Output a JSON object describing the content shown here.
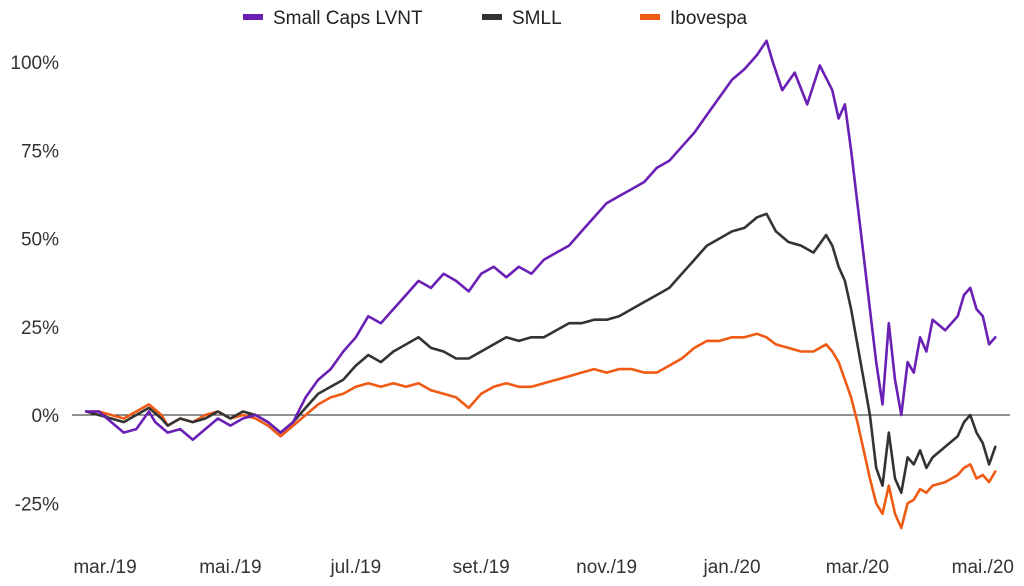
{
  "chart_data": {
    "type": "line",
    "title": "",
    "xlabel": "",
    "ylabel": "",
    "ylim": [
      -25,
      108
    ],
    "grid": false,
    "zero_line": true,
    "legend_position": "top-center",
    "y_ticks": [
      {
        "value": 100,
        "label": "100%"
      },
      {
        "value": 75,
        "label": "75%"
      },
      {
        "value": 50,
        "label": "50%"
      },
      {
        "value": 25,
        "label": "25%"
      },
      {
        "value": 0,
        "label": "0%"
      },
      {
        "value": -25,
        "label": "-25%"
      }
    ],
    "x_ticks": [
      {
        "value": 0,
        "label": "mar./19"
      },
      {
        "value": 2,
        "label": "mai./19"
      },
      {
        "value": 4,
        "label": "jul./19"
      },
      {
        "value": 6,
        "label": "set./19"
      },
      {
        "value": 8,
        "label": "nov./19"
      },
      {
        "value": 10,
        "label": "jan./20"
      },
      {
        "value": 12,
        "label": "mar./20"
      },
      {
        "value": 14,
        "label": "mai./20"
      }
    ],
    "x_unit": "months since mar./19",
    "xlim": [
      -0.3,
      14.25
    ],
    "series": [
      {
        "name": "Small Caps LVNT",
        "color": "#6a1fb5",
        "points": [
          [
            -0.3,
            1
          ],
          [
            -0.1,
            1
          ],
          [
            0.1,
            -2
          ],
          [
            0.3,
            -5
          ],
          [
            0.5,
            -4
          ],
          [
            0.7,
            1
          ],
          [
            0.8,
            -2
          ],
          [
            1.0,
            -5
          ],
          [
            1.2,
            -4
          ],
          [
            1.4,
            -7
          ],
          [
            1.6,
            -4
          ],
          [
            1.8,
            -1
          ],
          [
            2.0,
            -3
          ],
          [
            2.2,
            -1
          ],
          [
            2.4,
            0
          ],
          [
            2.6,
            -2
          ],
          [
            2.8,
            -5
          ],
          [
            3.0,
            -2
          ],
          [
            3.2,
            5
          ],
          [
            3.4,
            10
          ],
          [
            3.6,
            13
          ],
          [
            3.8,
            18
          ],
          [
            4.0,
            22
          ],
          [
            4.2,
            28
          ],
          [
            4.4,
            26
          ],
          [
            4.6,
            30
          ],
          [
            4.8,
            34
          ],
          [
            5.0,
            38
          ],
          [
            5.2,
            36
          ],
          [
            5.4,
            40
          ],
          [
            5.6,
            38
          ],
          [
            5.8,
            35
          ],
          [
            6.0,
            40
          ],
          [
            6.2,
            42
          ],
          [
            6.4,
            39
          ],
          [
            6.6,
            42
          ],
          [
            6.8,
            40
          ],
          [
            7.0,
            44
          ],
          [
            7.2,
            46
          ],
          [
            7.4,
            48
          ],
          [
            7.6,
            52
          ],
          [
            7.8,
            56
          ],
          [
            8.0,
            60
          ],
          [
            8.2,
            62
          ],
          [
            8.4,
            64
          ],
          [
            8.6,
            66
          ],
          [
            8.8,
            70
          ],
          [
            9.0,
            72
          ],
          [
            9.2,
            76
          ],
          [
            9.4,
            80
          ],
          [
            9.6,
            85
          ],
          [
            9.8,
            90
          ],
          [
            10.0,
            95
          ],
          [
            10.2,
            98
          ],
          [
            10.4,
            102
          ],
          [
            10.55,
            106
          ],
          [
            10.65,
            100
          ],
          [
            10.8,
            92
          ],
          [
            11.0,
            97
          ],
          [
            11.2,
            88
          ],
          [
            11.4,
            99
          ],
          [
            11.6,
            92
          ],
          [
            11.7,
            84
          ],
          [
            11.8,
            88
          ],
          [
            11.9,
            75
          ],
          [
            12.0,
            60
          ],
          [
            12.1,
            45
          ],
          [
            12.2,
            30
          ],
          [
            12.3,
            15
          ],
          [
            12.4,
            3
          ],
          [
            12.5,
            26
          ],
          [
            12.6,
            10
          ],
          [
            12.7,
            0
          ],
          [
            12.8,
            15
          ],
          [
            12.9,
            12
          ],
          [
            13.0,
            22
          ],
          [
            13.1,
            18
          ],
          [
            13.2,
            27
          ],
          [
            13.4,
            24
          ],
          [
            13.6,
            28
          ],
          [
            13.7,
            34
          ],
          [
            13.8,
            36
          ],
          [
            13.9,
            30
          ],
          [
            14.0,
            28
          ],
          [
            14.1,
            20
          ],
          [
            14.2,
            22
          ]
        ]
      },
      {
        "name": "SMLL",
        "color": "#333333",
        "points": [
          [
            -0.3,
            1
          ],
          [
            -0.1,
            0
          ],
          [
            0.1,
            -1
          ],
          [
            0.3,
            -2
          ],
          [
            0.5,
            0
          ],
          [
            0.7,
            2
          ],
          [
            0.9,
            -1
          ],
          [
            1.0,
            -3
          ],
          [
            1.2,
            -1
          ],
          [
            1.4,
            -2
          ],
          [
            1.6,
            -1
          ],
          [
            1.8,
            1
          ],
          [
            2.0,
            -1
          ],
          [
            2.2,
            1
          ],
          [
            2.4,
            0
          ],
          [
            2.6,
            -2
          ],
          [
            2.8,
            -5
          ],
          [
            3.0,
            -2
          ],
          [
            3.2,
            2
          ],
          [
            3.4,
            6
          ],
          [
            3.6,
            8
          ],
          [
            3.8,
            10
          ],
          [
            4.0,
            14
          ],
          [
            4.2,
            17
          ],
          [
            4.4,
            15
          ],
          [
            4.6,
            18
          ],
          [
            4.8,
            20
          ],
          [
            5.0,
            22
          ],
          [
            5.2,
            19
          ],
          [
            5.4,
            18
          ],
          [
            5.6,
            16
          ],
          [
            5.8,
            16
          ],
          [
            6.0,
            18
          ],
          [
            6.2,
            20
          ],
          [
            6.4,
            22
          ],
          [
            6.6,
            21
          ],
          [
            6.8,
            22
          ],
          [
            7.0,
            22
          ],
          [
            7.2,
            24
          ],
          [
            7.4,
            26
          ],
          [
            7.6,
            26
          ],
          [
            7.8,
            27
          ],
          [
            8.0,
            27
          ],
          [
            8.2,
            28
          ],
          [
            8.4,
            30
          ],
          [
            8.6,
            32
          ],
          [
            8.8,
            34
          ],
          [
            9.0,
            36
          ],
          [
            9.2,
            40
          ],
          [
            9.4,
            44
          ],
          [
            9.6,
            48
          ],
          [
            9.8,
            50
          ],
          [
            10.0,
            52
          ],
          [
            10.2,
            53
          ],
          [
            10.4,
            56
          ],
          [
            10.55,
            57
          ],
          [
            10.7,
            52
          ],
          [
            10.9,
            49
          ],
          [
            11.1,
            48
          ],
          [
            11.3,
            46
          ],
          [
            11.5,
            51
          ],
          [
            11.6,
            48
          ],
          [
            11.7,
            42
          ],
          [
            11.8,
            38
          ],
          [
            11.9,
            30
          ],
          [
            12.0,
            20
          ],
          [
            12.1,
            10
          ],
          [
            12.2,
            0
          ],
          [
            12.3,
            -15
          ],
          [
            12.4,
            -20
          ],
          [
            12.5,
            -5
          ],
          [
            12.6,
            -18
          ],
          [
            12.7,
            -22
          ],
          [
            12.8,
            -12
          ],
          [
            12.9,
            -14
          ],
          [
            13.0,
            -10
          ],
          [
            13.1,
            -15
          ],
          [
            13.2,
            -12
          ],
          [
            13.4,
            -9
          ],
          [
            13.6,
            -6
          ],
          [
            13.7,
            -2
          ],
          [
            13.8,
            0
          ],
          [
            13.9,
            -5
          ],
          [
            14.0,
            -8
          ],
          [
            14.1,
            -14
          ],
          [
            14.2,
            -9
          ]
        ]
      },
      {
        "name": "Ibovespa",
        "color": "#f05a14",
        "points": [
          [
            -0.3,
            1
          ],
          [
            -0.1,
            1
          ],
          [
            0.1,
            0
          ],
          [
            0.3,
            -1
          ],
          [
            0.5,
            1
          ],
          [
            0.7,
            3
          ],
          [
            0.9,
            0
          ],
          [
            1.0,
            -3
          ],
          [
            1.2,
            -1
          ],
          [
            1.4,
            -2
          ],
          [
            1.6,
            0
          ],
          [
            1.8,
            1
          ],
          [
            2.0,
            -1
          ],
          [
            2.2,
            0
          ],
          [
            2.4,
            -1
          ],
          [
            2.6,
            -3
          ],
          [
            2.8,
            -6
          ],
          [
            3.0,
            -3
          ],
          [
            3.2,
            0
          ],
          [
            3.4,
            3
          ],
          [
            3.6,
            5
          ],
          [
            3.8,
            6
          ],
          [
            4.0,
            8
          ],
          [
            4.2,
            9
          ],
          [
            4.4,
            8
          ],
          [
            4.6,
            9
          ],
          [
            4.8,
            8
          ],
          [
            5.0,
            9
          ],
          [
            5.2,
            7
          ],
          [
            5.4,
            6
          ],
          [
            5.6,
            5
          ],
          [
            5.8,
            2
          ],
          [
            6.0,
            6
          ],
          [
            6.2,
            8
          ],
          [
            6.4,
            9
          ],
          [
            6.6,
            8
          ],
          [
            6.8,
            8
          ],
          [
            7.0,
            9
          ],
          [
            7.2,
            10
          ],
          [
            7.4,
            11
          ],
          [
            7.6,
            12
          ],
          [
            7.8,
            13
          ],
          [
            8.0,
            12
          ],
          [
            8.2,
            13
          ],
          [
            8.4,
            13
          ],
          [
            8.6,
            12
          ],
          [
            8.8,
            12
          ],
          [
            9.0,
            14
          ],
          [
            9.2,
            16
          ],
          [
            9.4,
            19
          ],
          [
            9.6,
            21
          ],
          [
            9.8,
            21
          ],
          [
            10.0,
            22
          ],
          [
            10.2,
            22
          ],
          [
            10.4,
            23
          ],
          [
            10.55,
            22
          ],
          [
            10.7,
            20
          ],
          [
            10.9,
            19
          ],
          [
            11.1,
            18
          ],
          [
            11.3,
            18
          ],
          [
            11.5,
            20
          ],
          [
            11.6,
            18
          ],
          [
            11.7,
            15
          ],
          [
            11.8,
            10
          ],
          [
            11.9,
            5
          ],
          [
            12.0,
            -2
          ],
          [
            12.1,
            -10
          ],
          [
            12.2,
            -18
          ],
          [
            12.3,
            -25
          ],
          [
            12.4,
            -28
          ],
          [
            12.5,
            -20
          ],
          [
            12.6,
            -28
          ],
          [
            12.7,
            -32
          ],
          [
            12.8,
            -25
          ],
          [
            12.9,
            -24
          ],
          [
            13.0,
            -21
          ],
          [
            13.1,
            -22
          ],
          [
            13.2,
            -20
          ],
          [
            13.4,
            -19
          ],
          [
            13.6,
            -17
          ],
          [
            13.7,
            -15
          ],
          [
            13.8,
            -14
          ],
          [
            13.9,
            -18
          ],
          [
            14.0,
            -17
          ],
          [
            14.1,
            -19
          ],
          [
            14.2,
            -16
          ]
        ]
      }
    ]
  }
}
